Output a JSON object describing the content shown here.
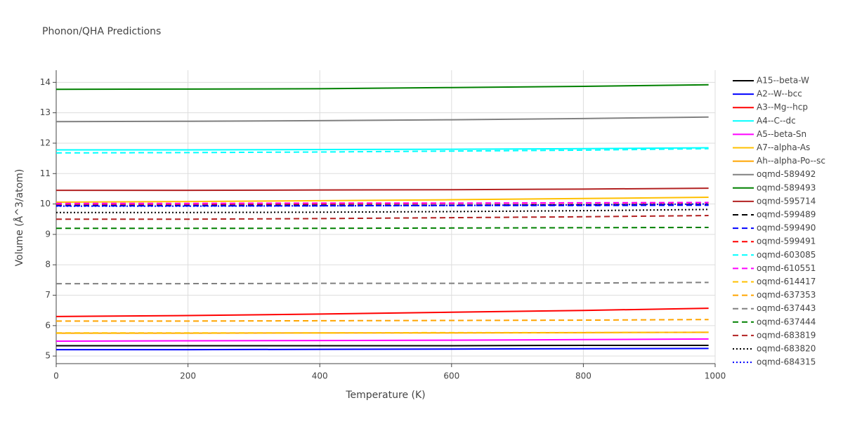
{
  "chart_data": {
    "type": "line",
    "title": "Phonon/QHA Predictions",
    "x_label": "Temperature (K)",
    "y_label": "Volume (Å^3/atom)",
    "x": [
      0,
      200,
      400,
      600,
      800,
      990
    ],
    "xlim": [
      0,
      1000
    ],
    "xticks": [
      0,
      200,
      400,
      600,
      800,
      1000
    ],
    "ylim": [
      4.75,
      14.4
    ],
    "yticks": [
      5,
      6,
      7,
      8,
      9,
      10,
      11,
      12,
      13,
      14
    ],
    "grid": true,
    "legend": "right",
    "series": [
      {
        "name": "A15--beta-W",
        "color": "#000000",
        "dash": "solid",
        "values": [
          5.34,
          5.34,
          5.34,
          5.34,
          5.35,
          5.35
        ]
      },
      {
        "name": "A2--W--bcc",
        "color": "#0000ff",
        "dash": "solid",
        "values": [
          5.21,
          5.21,
          5.22,
          5.23,
          5.24,
          5.25
        ]
      },
      {
        "name": "A3--Mg--hcp",
        "color": "#ff0000",
        "dash": "solid",
        "values": [
          6.3,
          6.33,
          6.38,
          6.44,
          6.5,
          6.57
        ]
      },
      {
        "name": "A4--C--dc",
        "color": "#00ffff",
        "dash": "solid",
        "values": [
          11.78,
          11.78,
          11.79,
          11.8,
          11.82,
          11.85
        ]
      },
      {
        "name": "A5--beta-Sn",
        "color": "#ff00ff",
        "dash": "solid",
        "values": [
          5.49,
          5.5,
          5.51,
          5.52,
          5.54,
          5.56
        ]
      },
      {
        "name": "A7--alpha-As",
        "color": "#ffc000",
        "dash": "solid",
        "values": [
          10.06,
          10.08,
          10.11,
          10.14,
          10.18,
          10.22
        ]
      },
      {
        "name": "Ah--alpha-Po--sc",
        "color": "#ffa500",
        "dash": "solid",
        "values": [
          5.75,
          5.75,
          5.76,
          5.76,
          5.77,
          5.78
        ]
      },
      {
        "name": "oqmd-589492",
        "color": "#808080",
        "dash": "solid",
        "values": [
          12.71,
          12.72,
          12.74,
          12.77,
          12.81,
          12.86
        ]
      },
      {
        "name": "oqmd-589493",
        "color": "#008000",
        "dash": "solid",
        "values": [
          13.77,
          13.78,
          13.79,
          13.83,
          13.87,
          13.92
        ]
      },
      {
        "name": "oqmd-595714",
        "color": "#b22222",
        "dash": "solid",
        "values": [
          10.45,
          10.45,
          10.46,
          10.47,
          10.49,
          10.52
        ]
      },
      {
        "name": "oqmd-599489",
        "color": "#000000",
        "dash": "dash",
        "values": [
          9.95,
          9.95,
          9.96,
          9.96,
          9.97,
          9.98
        ]
      },
      {
        "name": "oqmd-599490",
        "color": "#0000ff",
        "dash": "dash",
        "values": [
          9.94,
          9.94,
          9.94,
          9.95,
          9.95,
          9.96
        ]
      },
      {
        "name": "oqmd-599491",
        "color": "#ff0000",
        "dash": "dash",
        "values": [
          10.0,
          10.0,
          10.01,
          10.02,
          10.03,
          10.04
        ]
      },
      {
        "name": "oqmd-603085",
        "color": "#00ffff",
        "dash": "dash",
        "values": [
          11.68,
          11.69,
          11.71,
          11.74,
          11.77,
          11.82
        ]
      },
      {
        "name": "oqmd-610551",
        "color": "#ff00ff",
        "dash": "dash",
        "values": [
          10.02,
          10.02,
          10.03,
          10.03,
          10.04,
          10.05
        ]
      },
      {
        "name": "oqmd-614417",
        "color": "#ffc000",
        "dash": "dash",
        "values": [
          5.76,
          5.76,
          5.76,
          5.77,
          5.77,
          5.78
        ]
      },
      {
        "name": "oqmd-637353",
        "color": "#ffa500",
        "dash": "dash",
        "values": [
          6.15,
          6.15,
          6.16,
          6.17,
          6.18,
          6.2
        ]
      },
      {
        "name": "oqmd-637443",
        "color": "#808080",
        "dash": "dash",
        "values": [
          7.38,
          7.38,
          7.39,
          7.39,
          7.4,
          7.42
        ]
      },
      {
        "name": "oqmd-637444",
        "color": "#008000",
        "dash": "dash",
        "values": [
          9.2,
          9.2,
          9.2,
          9.21,
          9.22,
          9.23
        ]
      },
      {
        "name": "oqmd-683819",
        "color": "#b22222",
        "dash": "dash",
        "values": [
          9.5,
          9.5,
          9.52,
          9.55,
          9.58,
          9.62
        ]
      },
      {
        "name": "oqmd-683820",
        "color": "#000000",
        "dash": "dot",
        "values": [
          9.72,
          9.72,
          9.73,
          9.75,
          9.78,
          9.82
        ]
      },
      {
        "name": "oqmd-684315",
        "color": "#0000ff",
        "dash": "dot",
        "values": [
          9.93,
          9.93,
          9.94,
          9.95,
          9.97,
          10.0
        ]
      }
    ]
  }
}
